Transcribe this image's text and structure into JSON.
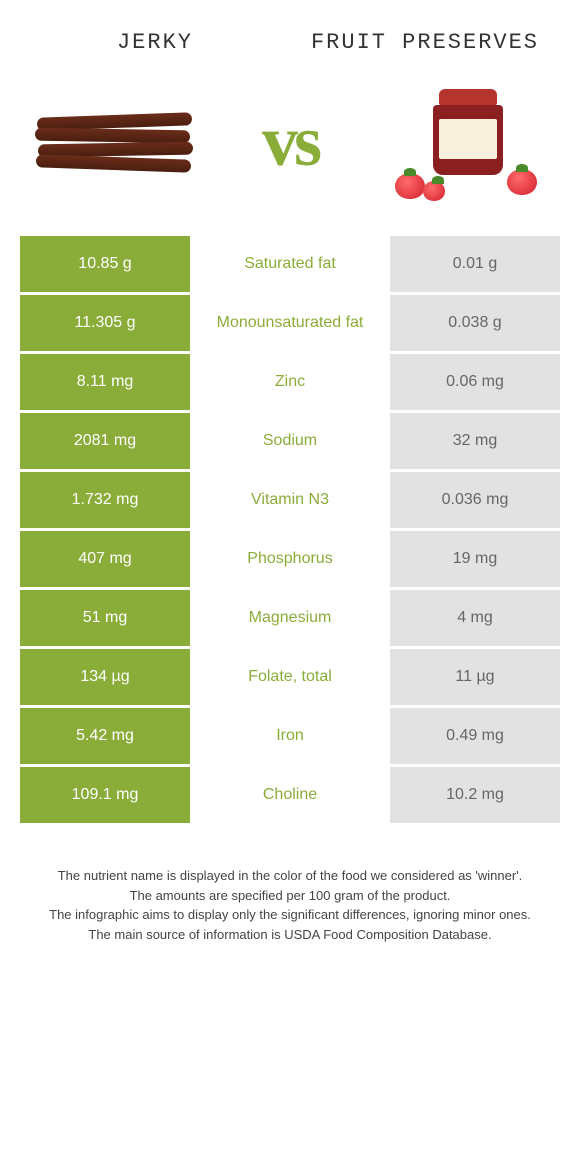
{
  "header": {
    "left_title": "Jerky",
    "right_title": "Fruit Preserves",
    "vs": "vs"
  },
  "colors": {
    "left_bg": "#8aad3a",
    "right_bg": "#e2e2e2",
    "nutrient_left_win": "#8aad3a",
    "right_text": "#666666"
  },
  "rows": [
    {
      "left": "10.85 g",
      "nutrient": "Saturated fat",
      "right": "0.01 g"
    },
    {
      "left": "11.305 g",
      "nutrient": "Monounsaturated fat",
      "right": "0.038 g"
    },
    {
      "left": "8.11 mg",
      "nutrient": "Zinc",
      "right": "0.06 mg"
    },
    {
      "left": "2081 mg",
      "nutrient": "Sodium",
      "right": "32 mg"
    },
    {
      "left": "1.732 mg",
      "nutrient": "Vitamin N3",
      "right": "0.036 mg"
    },
    {
      "left": "407 mg",
      "nutrient": "Phosphorus",
      "right": "19 mg"
    },
    {
      "left": "51 mg",
      "nutrient": "Magnesium",
      "right": "4 mg"
    },
    {
      "left": "134 µg",
      "nutrient": "Folate, total",
      "right": "11 µg"
    },
    {
      "left": "5.42 mg",
      "nutrient": "Iron",
      "right": "0.49 mg"
    },
    {
      "left": "109.1 mg",
      "nutrient": "Choline",
      "right": "10.2 mg"
    }
  ],
  "footer": {
    "l1": "The nutrient name is displayed in the color of the food we considered as 'winner'.",
    "l2": "The amounts are specified per 100 gram of the product.",
    "l3": "The infographic aims to display only the significant differences, ignoring minor ones.",
    "l4": "The main source of information is USDA Food Composition Database."
  }
}
